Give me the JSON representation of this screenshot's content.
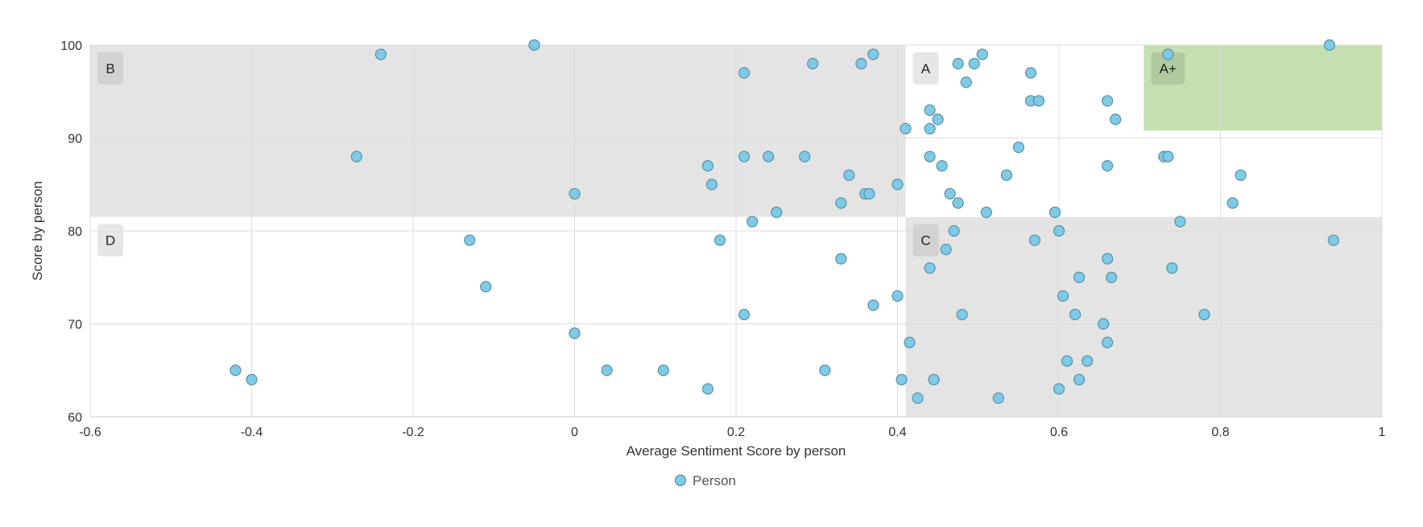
{
  "chart_data": {
    "type": "scatter",
    "title": "",
    "xlabel": "Average Sentiment Score by person",
    "ylabel": "Score by person",
    "xlim": [
      -0.6,
      1
    ],
    "ylim": [
      60,
      100
    ],
    "xticks": [
      -0.6,
      -0.4,
      -0.2,
      0,
      0.2,
      0.4,
      0.6,
      0.8,
      1
    ],
    "xtick_labels": [
      "-0.6",
      "-0.4",
      "-0.2",
      "0",
      "0.2",
      "0.4",
      "0.6",
      "0.8",
      "1"
    ],
    "yticks": [
      60,
      70,
      80,
      90,
      100
    ],
    "ytick_labels": [
      "60",
      "70",
      "80",
      "90",
      "100"
    ],
    "grid": true,
    "legend": {
      "position": "bottom-center",
      "entries": [
        "Person"
      ]
    },
    "regions": [
      {
        "label": "B",
        "x": [
          -0.6,
          0.41
        ],
        "y": [
          81.5,
          100
        ],
        "color": "#e4e4e4"
      },
      {
        "label": "A",
        "x": [
          0.41,
          1
        ],
        "y": [
          81.5,
          100
        ],
        "color": "#ffffff"
      },
      {
        "label": "A+",
        "x": [
          0.705,
          1
        ],
        "y": [
          90.8,
          100
        ],
        "color": "#c5e0b0"
      },
      {
        "label": "D",
        "x": [
          -0.6,
          0.41
        ],
        "y": [
          60,
          81.5
        ],
        "color": "#ffffff"
      },
      {
        "label": "C",
        "x": [
          0.41,
          1
        ],
        "y": [
          60,
          81.5
        ],
        "color": "#e4e4e4"
      }
    ],
    "series": [
      {
        "name": "Person",
        "color": "#7ecbe8",
        "points": [
          [
            -0.24,
            99
          ],
          [
            -0.05,
            100
          ],
          [
            -0.27,
            88
          ],
          [
            0,
            84
          ],
          [
            -0.13,
            79
          ],
          [
            -0.11,
            74
          ],
          [
            0,
            69
          ],
          [
            -0.42,
            65
          ],
          [
            -0.4,
            64
          ],
          [
            0.04,
            65
          ],
          [
            0.11,
            65
          ],
          [
            0.165,
            63
          ],
          [
            0.18,
            79
          ],
          [
            0.21,
            71
          ],
          [
            0.22,
            81
          ],
          [
            0.165,
            87
          ],
          [
            0.17,
            85
          ],
          [
            0.21,
            88
          ],
          [
            0.24,
            88
          ],
          [
            0.25,
            82
          ],
          [
            0.285,
            88
          ],
          [
            0.21,
            97
          ],
          [
            0.295,
            98
          ],
          [
            0.31,
            65
          ],
          [
            0.33,
            77
          ],
          [
            0.33,
            83
          ],
          [
            0.34,
            86
          ],
          [
            0.355,
            98
          ],
          [
            0.36,
            84
          ],
          [
            0.365,
            84
          ],
          [
            0.37,
            99
          ],
          [
            0.37,
            72
          ],
          [
            0.4,
            73
          ],
          [
            0.4,
            85
          ],
          [
            0.405,
            64
          ],
          [
            0.41,
            91
          ],
          [
            0.415,
            68
          ],
          [
            0.425,
            62
          ],
          [
            0.44,
            93
          ],
          [
            0.44,
            91
          ],
          [
            0.44,
            88
          ],
          [
            0.44,
            76
          ],
          [
            0.445,
            64
          ],
          [
            0.45,
            92
          ],
          [
            0.455,
            87
          ],
          [
            0.46,
            78
          ],
          [
            0.465,
            84
          ],
          [
            0.47,
            80
          ],
          [
            0.475,
            98
          ],
          [
            0.475,
            83
          ],
          [
            0.48,
            71
          ],
          [
            0.485,
            96
          ],
          [
            0.495,
            98
          ],
          [
            0.505,
            99
          ],
          [
            0.51,
            82
          ],
          [
            0.525,
            62
          ],
          [
            0.535,
            86
          ],
          [
            0.55,
            89
          ],
          [
            0.565,
            97
          ],
          [
            0.565,
            94
          ],
          [
            0.57,
            79
          ],
          [
            0.575,
            94
          ],
          [
            0.595,
            82
          ],
          [
            0.6,
            80
          ],
          [
            0.6,
            63
          ],
          [
            0.605,
            73
          ],
          [
            0.61,
            66
          ],
          [
            0.62,
            71
          ],
          [
            0.625,
            75
          ],
          [
            0.625,
            64
          ],
          [
            0.635,
            66
          ],
          [
            0.655,
            70
          ],
          [
            0.66,
            94
          ],
          [
            0.66,
            87
          ],
          [
            0.66,
            77
          ],
          [
            0.66,
            68
          ],
          [
            0.665,
            75
          ],
          [
            0.67,
            92
          ],
          [
            0.73,
            88
          ],
          [
            0.735,
            88
          ],
          [
            0.735,
            99
          ],
          [
            0.74,
            76
          ],
          [
            0.75,
            81
          ],
          [
            0.78,
            71
          ],
          [
            0.815,
            83
          ],
          [
            0.825,
            86
          ],
          [
            0.935,
            100
          ],
          [
            0.94,
            79
          ]
        ]
      }
    ]
  }
}
